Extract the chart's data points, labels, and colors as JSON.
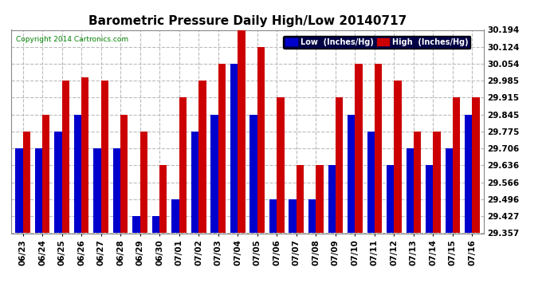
{
  "title": "Barometric Pressure Daily High/Low 20140717",
  "copyright": "Copyright 2014 Cartronics.com",
  "legend_low": "Low  (Inches/Hg)",
  "legend_high": "High  (Inches/Hg)",
  "dates": [
    "06/23",
    "06/24",
    "06/25",
    "06/26",
    "06/27",
    "06/28",
    "06/29",
    "06/30",
    "07/01",
    "07/02",
    "07/03",
    "07/04",
    "07/05",
    "07/06",
    "07/07",
    "07/08",
    "07/09",
    "07/10",
    "07/11",
    "07/12",
    "07/13",
    "07/14",
    "07/15",
    "07/16"
  ],
  "low": [
    29.706,
    29.706,
    29.775,
    29.845,
    29.706,
    29.706,
    29.427,
    29.427,
    29.496,
    29.775,
    29.845,
    30.054,
    29.845,
    29.496,
    29.496,
    29.496,
    29.636,
    29.845,
    29.775,
    29.636,
    29.706,
    29.636,
    29.706,
    29.845
  ],
  "high": [
    29.775,
    29.845,
    29.985,
    30.0,
    29.985,
    29.845,
    29.775,
    29.636,
    29.915,
    29.985,
    30.054,
    30.194,
    30.124,
    29.915,
    29.636,
    29.636,
    29.915,
    30.054,
    30.054,
    29.985,
    29.775,
    29.775,
    29.915,
    29.915
  ],
  "low_color": "#0000cc",
  "high_color": "#cc0000",
  "bg_color": "#ffffff",
  "grid_color": "#bbbbbb",
  "ylim_min": 29.357,
  "ylim_max": 30.194,
  "yticks": [
    29.357,
    29.427,
    29.496,
    29.566,
    29.636,
    29.706,
    29.775,
    29.845,
    29.915,
    29.985,
    30.054,
    30.124,
    30.194
  ],
  "legend_low_bg": "#0000cc",
  "legend_high_bg": "#cc0000",
  "legend_text_color": "#ffffff",
  "title_fontsize": 11,
  "tick_fontsize": 7.5,
  "bar_width": 0.38
}
